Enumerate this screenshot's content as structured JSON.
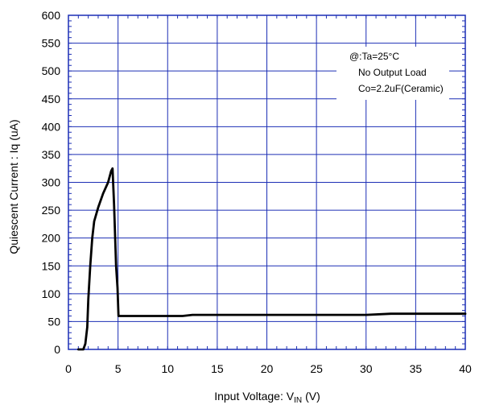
{
  "chart_data": {
    "type": "line",
    "title": "",
    "xlabel": "Input Voltage",
    "xlabel_symbol": "V",
    "xlabel_subscript": "IN",
    "xlabel_unit": "(V)",
    "ylabel": "Quiescent Current : Iq (uA)",
    "xlim": [
      0,
      40
    ],
    "ylim": [
      0,
      600
    ],
    "x_ticks": [
      0,
      5,
      10,
      15,
      20,
      25,
      30,
      35,
      40
    ],
    "y_ticks": [
      0,
      50,
      100,
      150,
      200,
      250,
      300,
      350,
      400,
      450,
      500,
      550,
      600
    ],
    "grid": true,
    "colors": {
      "plot_border": "#1c2fb5",
      "grid": "#1c2fb5",
      "line": "#000000"
    },
    "annotations": [
      "@:Ta=25°C",
      "No Output Load",
      "Co=2.2uF(Ceramic)"
    ],
    "series": [
      {
        "x": [
          1.0,
          1.5,
          1.7,
          1.9,
          2.0,
          2.2,
          2.4,
          2.6,
          3.0,
          3.5,
          4.0,
          4.3,
          4.45,
          4.6,
          4.8,
          4.95,
          5.05,
          5.2,
          6,
          8,
          10,
          11.5,
          12.5,
          20,
          25,
          30,
          32.5,
          35,
          40
        ],
        "y": [
          0,
          0,
          10,
          40,
          90,
          150,
          200,
          230,
          255,
          280,
          300,
          320,
          325,
          260,
          150,
          110,
          60,
          60,
          60,
          60,
          60,
          60,
          62,
          62,
          62,
          62,
          64,
          64,
          64
        ]
      }
    ]
  }
}
